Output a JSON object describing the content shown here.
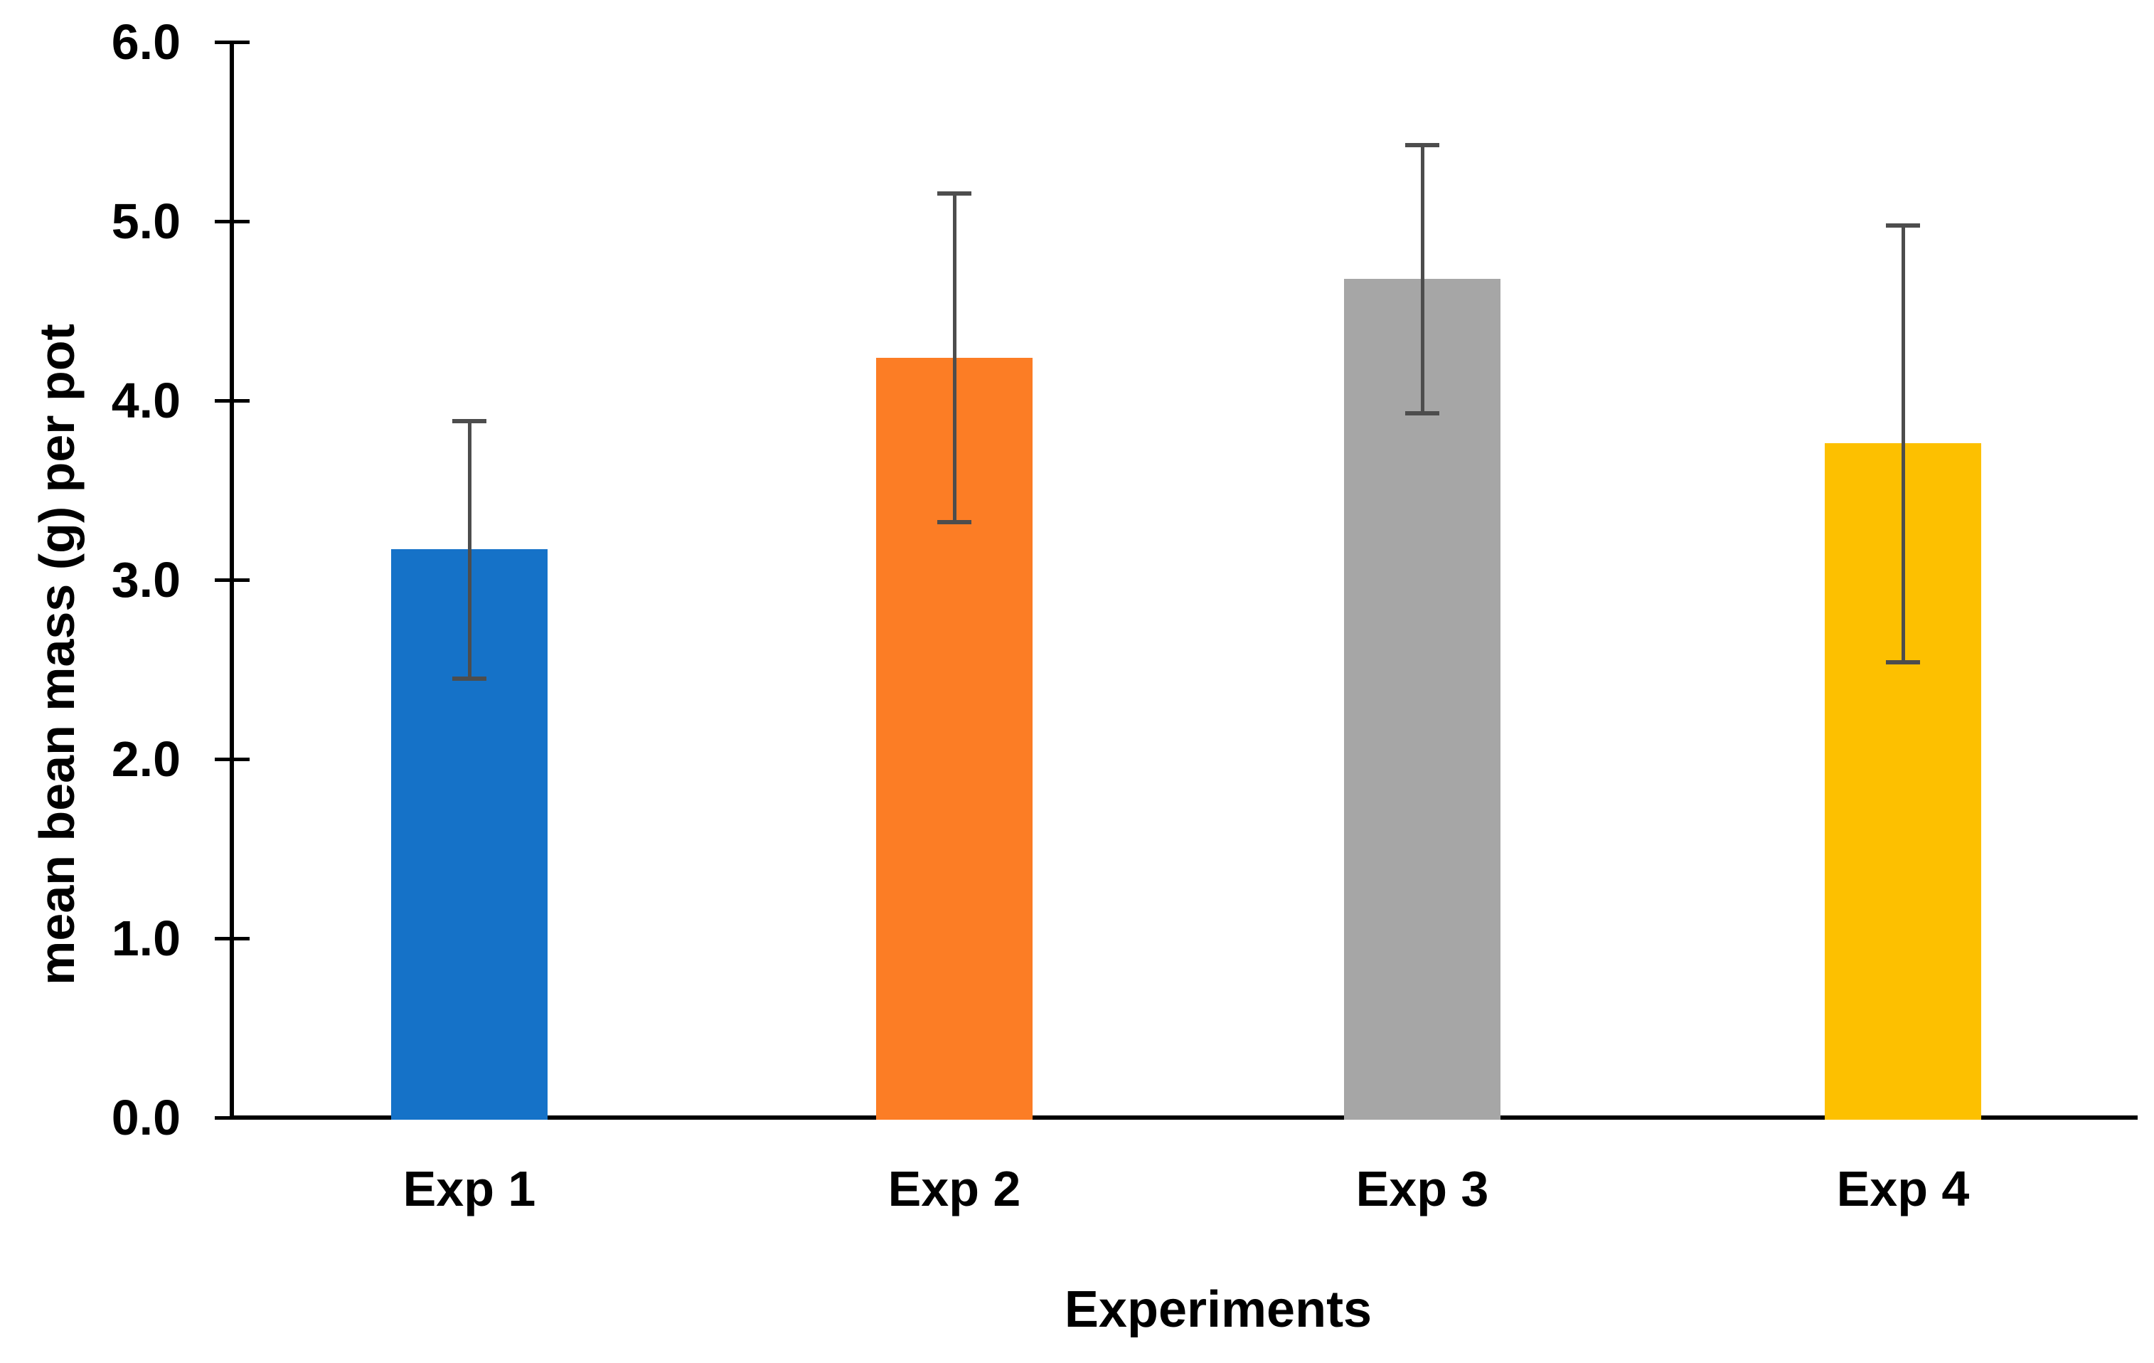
{
  "chart_data": {
    "type": "bar",
    "title": "",
    "xlabel": "Experiments",
    "ylabel": "mean bean mass (g) per pot",
    "categories": [
      "Exp 1",
      "Exp 2",
      "Exp 3",
      "Exp 4"
    ],
    "values": [
      3.17,
      4.24,
      4.68,
      3.76
    ],
    "error_bars": [
      0.72,
      0.92,
      0.75,
      1.22
    ],
    "bar_colors": [
      "#1572C8",
      "#FC7D25",
      "#A6A6A6",
      "#FDC000"
    ],
    "error_bar_color": "#4d4d4d",
    "axis_color": "#000000",
    "ylim": [
      0.0,
      6.0
    ],
    "ytick_step": 1.0,
    "ytick_labels": [
      "0.0",
      "1.0",
      "2.0",
      "3.0",
      "4.0",
      "5.0",
      "6.0"
    ],
    "grid": false,
    "legend": false
  }
}
